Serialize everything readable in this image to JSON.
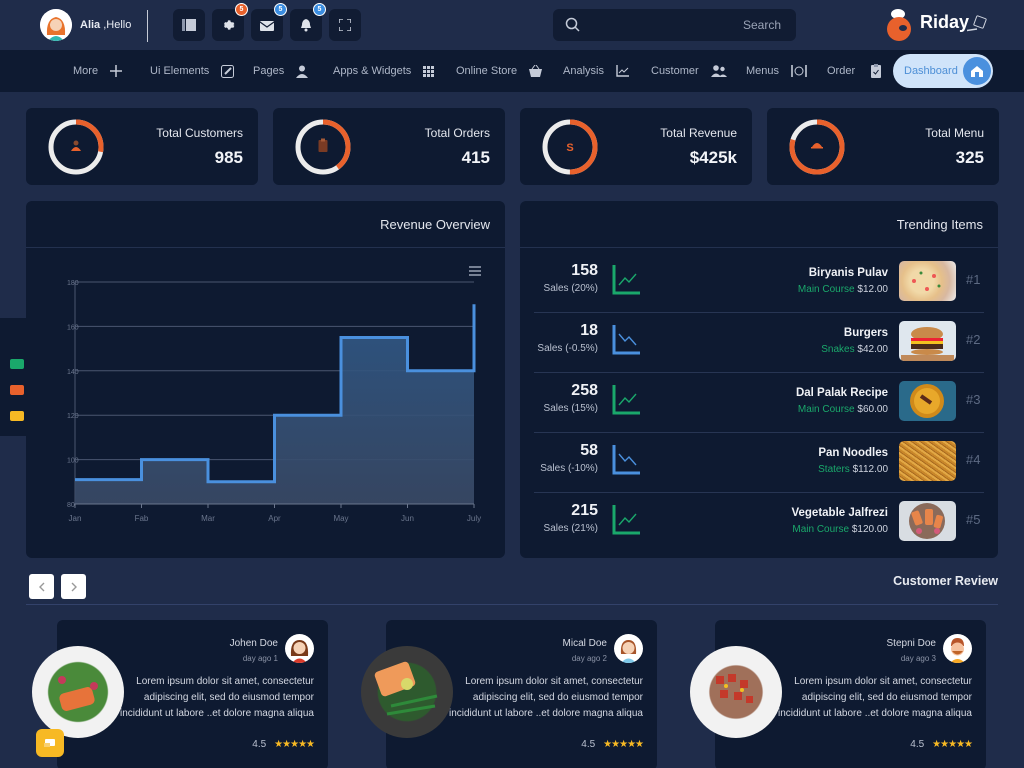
{
  "header": {
    "user_name": "Alia",
    "greeting": " ,Hello",
    "badges": {
      "settings": "5",
      "mail": "5",
      "notifications": "5"
    },
    "search_placeholder": "Search",
    "logo_text": "Riday"
  },
  "nav": {
    "items": [
      {
        "label": "More",
        "icon": "plus-icon"
      },
      {
        "label": "Ui Elements",
        "icon": "edit-icon"
      },
      {
        "label": "Pages",
        "icon": "user-icon"
      },
      {
        "label": "Apps & Widgets",
        "icon": "grid-icon"
      },
      {
        "label": "Online Store",
        "icon": "basket-icon"
      },
      {
        "label": "Analysis",
        "icon": "line-chart-icon"
      },
      {
        "label": "Customer",
        "icon": "users-icon"
      },
      {
        "label": "Menus",
        "icon": "dining-icon"
      },
      {
        "label": "Order",
        "icon": "clipboard-icon"
      }
    ],
    "active": "Dashboard"
  },
  "stats": [
    {
      "title": "Total Customers",
      "value": "985",
      "icon": "user-icon",
      "percent": 28
    },
    {
      "title": "Total Orders",
      "value": "415",
      "icon": "clipboard-icon",
      "percent": 40
    },
    {
      "title": "Total Revenue",
      "value": "$425k",
      "icon": "dollar-icon",
      "percent": 50
    },
    {
      "title": "Total Menu",
      "value": "325",
      "icon": "dish-icon",
      "percent": 80
    }
  ],
  "revenue": {
    "title": "Revenue Overview"
  },
  "chart_data": {
    "type": "line",
    "subtype": "step-area",
    "title": "Revenue Overview",
    "categories": [
      "Jan",
      "Fab",
      "Mar",
      "Apr",
      "May",
      "Jun",
      "July"
    ],
    "series": [
      {
        "name": "Revenue",
        "values": [
          91,
          100,
          90,
          120,
          155,
          140,
          170
        ],
        "color": "#4a90de"
      }
    ],
    "yticks": [
      80,
      100,
      120,
      140,
      160,
      180
    ],
    "ylim": [
      80,
      180
    ],
    "xlabel": "",
    "ylabel": "",
    "grid": true,
    "legend": "none"
  },
  "trending": {
    "title": "Trending Items",
    "items": [
      {
        "count": "158",
        "sales": "Sales (20%)",
        "trend": "up",
        "name": "Biryanis Pulav",
        "category": "Main Course",
        "price": "$12.00",
        "rank": "#1"
      },
      {
        "count": "18",
        "sales": "Sales (-0.5%)",
        "trend": "down",
        "name": "Burgers",
        "category": "Snakes",
        "price": "$42.00",
        "rank": "#2"
      },
      {
        "count": "258",
        "sales": "Sales (15%)",
        "trend": "up",
        "name": "Dal Palak Recipe",
        "category": "Main Course",
        "price": "$60.00",
        "rank": "#3"
      },
      {
        "count": "58",
        "sales": "Sales (-10%)",
        "trend": "down",
        "name": "Pan Noodles",
        "category": "Staters",
        "price": "$112.00",
        "rank": "#4"
      },
      {
        "count": "215",
        "sales": "Sales (21%)",
        "trend": "up",
        "name": "Vegetable Jalfrezi",
        "category": "Main Course",
        "price": "$120.00",
        "rank": "#5"
      }
    ]
  },
  "reviews": {
    "title": "Customer Review",
    "items": [
      {
        "name": "Johen Doe",
        "time": "day ago 1",
        "text": "Lorem ipsum dolor sit amet, consectetur adipiscing elit, sed do eiusmod tempor incididunt ut labore ..et dolore magna aliqua",
        "rating": "4.5",
        "stars": "★★★★★"
      },
      {
        "name": "Mical Doe",
        "time": "day ago 2",
        "text": "Lorem ipsum dolor sit amet, consectetur adipiscing elit, sed do eiusmod tempor incididunt ut labore ..et dolore magna aliqua",
        "rating": "4.5",
        "stars": "★★★★★"
      },
      {
        "name": "Stepni Doe",
        "time": "day ago 3",
        "text": "Lorem ipsum dolor sit amet, consectetur adipiscing elit, sed do eiusmod tempor incididunt ut labore ..et dolore magna aliqua",
        "rating": "4.5",
        "stars": "★★★★★"
      }
    ]
  },
  "colors": {
    "background": "#1f2c4a",
    "card": "#0e1a31",
    "accent_orange": "#e8612c",
    "accent_blue": "#4a90de",
    "success_green": "#1aa86b",
    "star_yellow": "#f7b924"
  }
}
